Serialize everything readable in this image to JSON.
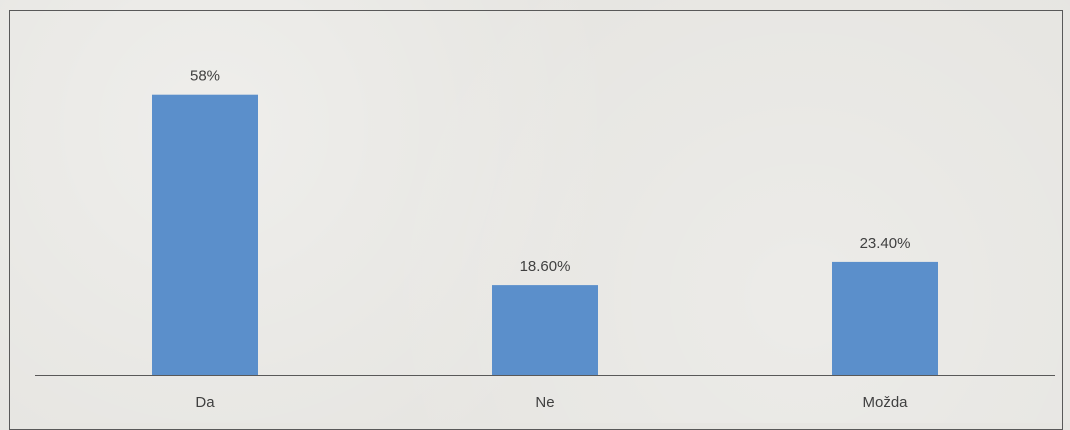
{
  "chart_data": {
    "type": "bar",
    "categories": [
      "Da",
      "Ne",
      "Možda"
    ],
    "values": [
      58,
      18.6,
      23.4
    ],
    "data_labels": [
      "58%",
      "18.60%",
      "23.40%"
    ],
    "title": "",
    "xlabel": "",
    "ylabel": "",
    "ylim": [
      0,
      60
    ],
    "grid": false,
    "legend": "none",
    "bar_color": "#5b8fcb",
    "axis_color": "#595959",
    "text_color": "#404040"
  }
}
